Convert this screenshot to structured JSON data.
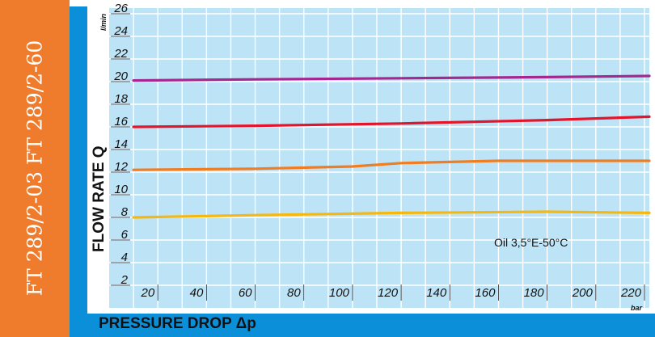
{
  "side_label": "FT 289/2-03   FT 289/2-60",
  "chart_data": {
    "type": "line",
    "xlabel": "PRESSURE DROP Δp",
    "ylabel": "FLOW RATE Q",
    "x_unit": "bar",
    "y_unit": "l/min",
    "x_ticks": [
      20,
      40,
      60,
      80,
      100,
      120,
      140,
      160,
      180,
      200,
      220
    ],
    "y_ticks": [
      2,
      4,
      6,
      8,
      10,
      12,
      14,
      16,
      18,
      20,
      22,
      24,
      26
    ],
    "xlim": [
      0,
      222
    ],
    "ylim": [
      0,
      26.5
    ],
    "grid": true,
    "annotation": "Oil 3,5°E-50°C",
    "series": [
      {
        "color": "#a4288f",
        "x": [
          10,
          60,
          120,
          180,
          222
        ],
        "y": [
          20.1,
          20.2,
          20.3,
          20.4,
          20.5
        ]
      },
      {
        "color": "#e4142a",
        "x": [
          10,
          60,
          120,
          180,
          222
        ],
        "y": [
          16.0,
          16.1,
          16.3,
          16.6,
          16.9
        ]
      },
      {
        "color": "#f07d22",
        "x": [
          10,
          60,
          100,
          120,
          160,
          222
        ],
        "y": [
          12.2,
          12.3,
          12.5,
          12.8,
          13.0,
          13.0
        ]
      },
      {
        "color": "#f6b80e",
        "x": [
          10,
          60,
          120,
          180,
          222
        ],
        "y": [
          8.0,
          8.2,
          8.4,
          8.5,
          8.4
        ]
      }
    ]
  }
}
